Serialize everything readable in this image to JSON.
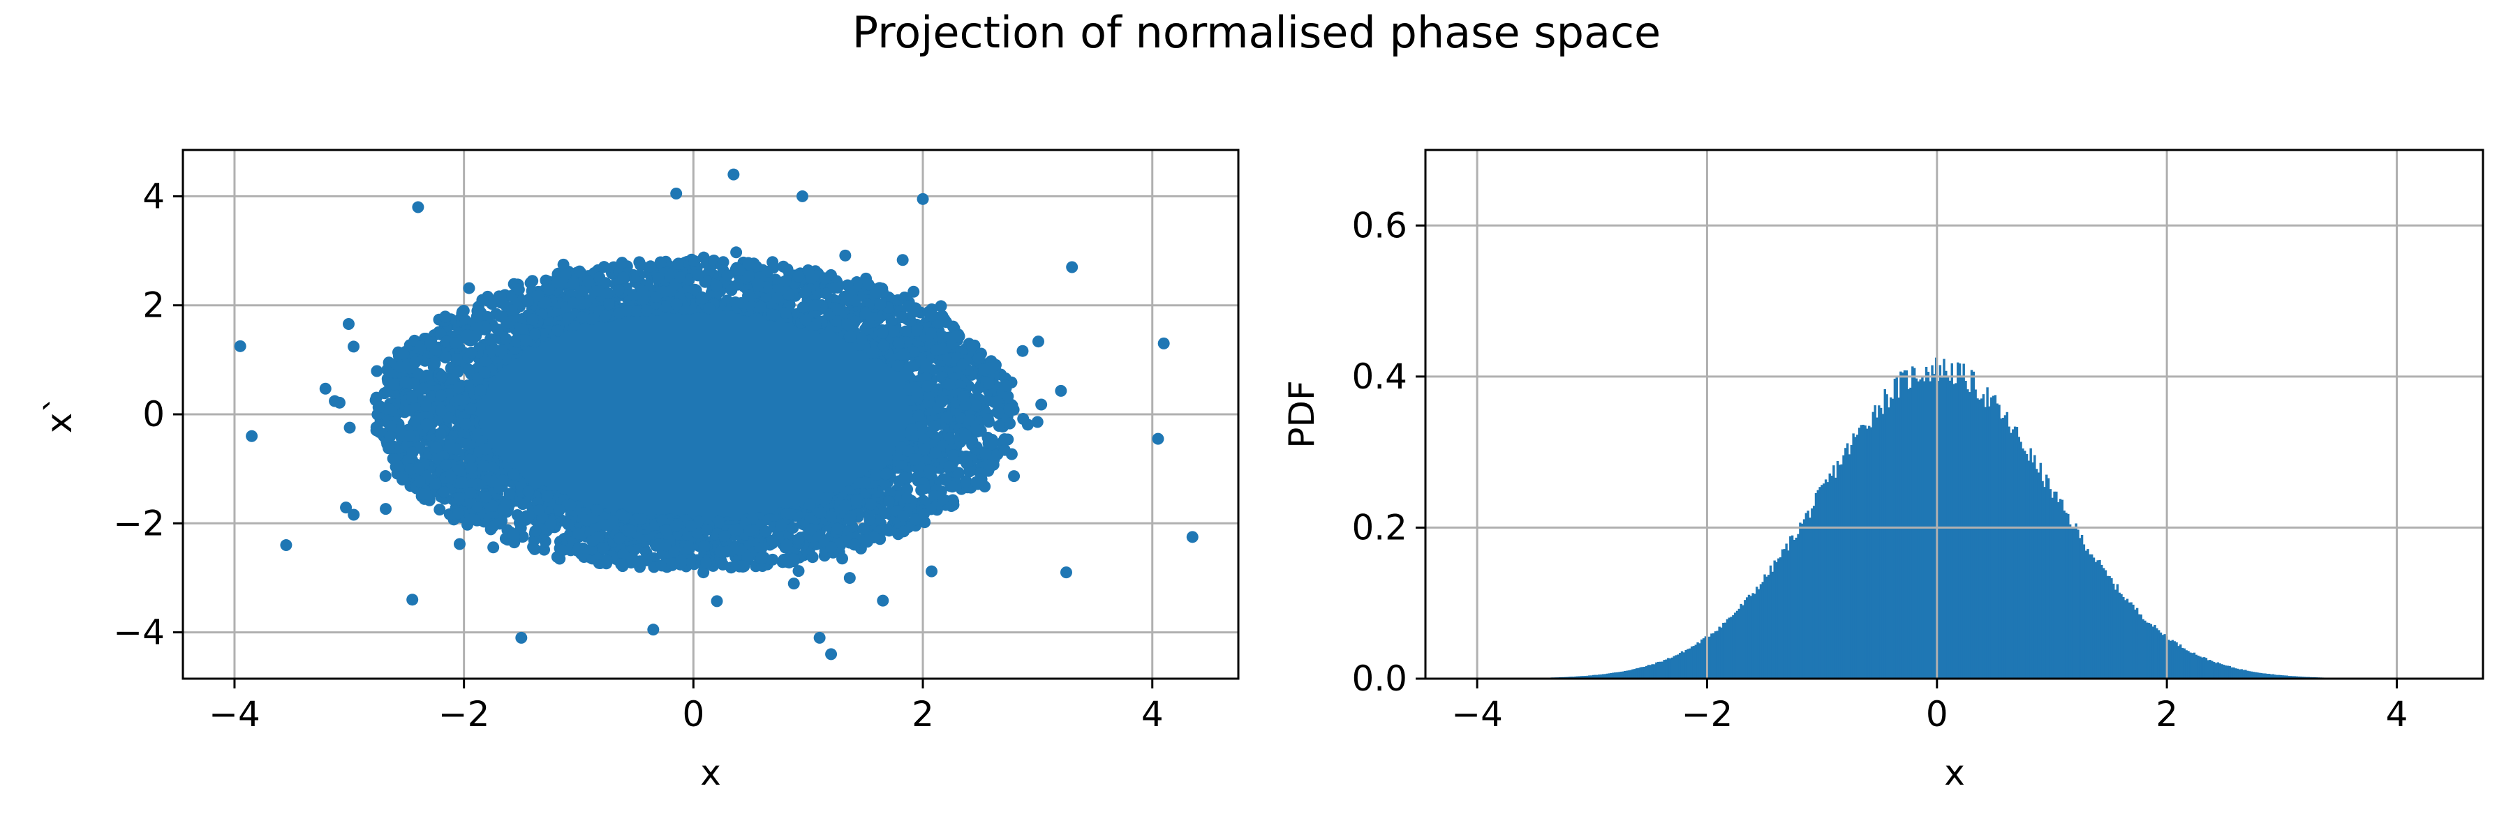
{
  "figure": {
    "suptitle": "Projection of normalised phase space"
  },
  "colors": {
    "series": "#1f77b4",
    "grid": "#b0b0b0",
    "axes": "#000000"
  },
  "chart_data": [
    {
      "type": "scatter",
      "xlabel": "x",
      "ylabel": "x`",
      "xlim": [
        -4.45,
        4.75
      ],
      "ylim": [
        -4.85,
        4.85
      ],
      "xticks": [
        -4,
        -2,
        0,
        2,
        4
      ],
      "yticks": [
        -4,
        -2,
        0,
        2,
        4
      ],
      "grid": true,
      "distribution": {
        "x_mean": 0,
        "x_std": 1,
        "y_mean": 0,
        "y_std": 1,
        "outliers": [
          {
            "x": 0.35,
            "y": 4.4
          },
          {
            "x": -2.4,
            "y": 3.8
          },
          {
            "x": 4.35,
            "y": -2.25
          },
          {
            "x": 1.2,
            "y": -4.4
          },
          {
            "x": -1.5,
            "y": -4.1
          },
          {
            "x": -3.95,
            "y": 1.25
          },
          {
            "x": 4.1,
            "y": 1.3
          },
          {
            "x": 3.25,
            "y": -2.9
          },
          {
            "x": 2.0,
            "y": 3.95
          },
          {
            "x": -0.15,
            "y": 4.05
          },
          {
            "x": -2.45,
            "y": -3.4
          },
          {
            "x": 3.3,
            "y": 2.7
          },
          {
            "x": 0.95,
            "y": 4.0
          },
          {
            "x": -3.55,
            "y": -2.4
          },
          {
            "x": 4.05,
            "y": -0.45
          },
          {
            "x": -3.85,
            "y": -0.4
          },
          {
            "x": 1.1,
            "y": -4.1
          },
          {
            "x": -0.35,
            "y": -3.95
          }
        ]
      }
    },
    {
      "type": "bar",
      "subtype": "histogram",
      "xlabel": "",
      "ylabel": "PDF",
      "xlim": [
        -4.45,
        4.75
      ],
      "ylim": [
        0,
        0.7
      ],
      "xticks": [
        -4,
        -2,
        0,
        2,
        4
      ],
      "yticks": [
        0.0,
        0.2,
        0.4,
        0.6
      ],
      "grid": true,
      "density": {
        "mean": 0,
        "std": 1,
        "peak": 0.41
      },
      "x": [
        -3.3,
        -3.0,
        -2.5,
        -2.0,
        -1.5,
        -1.0,
        -0.5,
        0.0,
        0.5,
        1.0,
        1.5,
        2.0,
        2.5,
        3.0,
        3.3
      ],
      "values": [
        0.002,
        0.005,
        0.018,
        0.054,
        0.13,
        0.24,
        0.35,
        0.4,
        0.35,
        0.24,
        0.13,
        0.054,
        0.018,
        0.005,
        0.002
      ]
    }
  ],
  "tick_labels": {
    "x": [
      "−4",
      "−2",
      "0",
      "2",
      "4"
    ],
    "y_left": [
      "−4",
      "−2",
      "0",
      "2",
      "4"
    ],
    "y_right": [
      "0.0",
      "0.2",
      "0.4",
      "0.6"
    ]
  },
  "axis_labels": {
    "left_x": "x",
    "left_y": "x`",
    "right_x": "x",
    "right_y": "PDF"
  }
}
